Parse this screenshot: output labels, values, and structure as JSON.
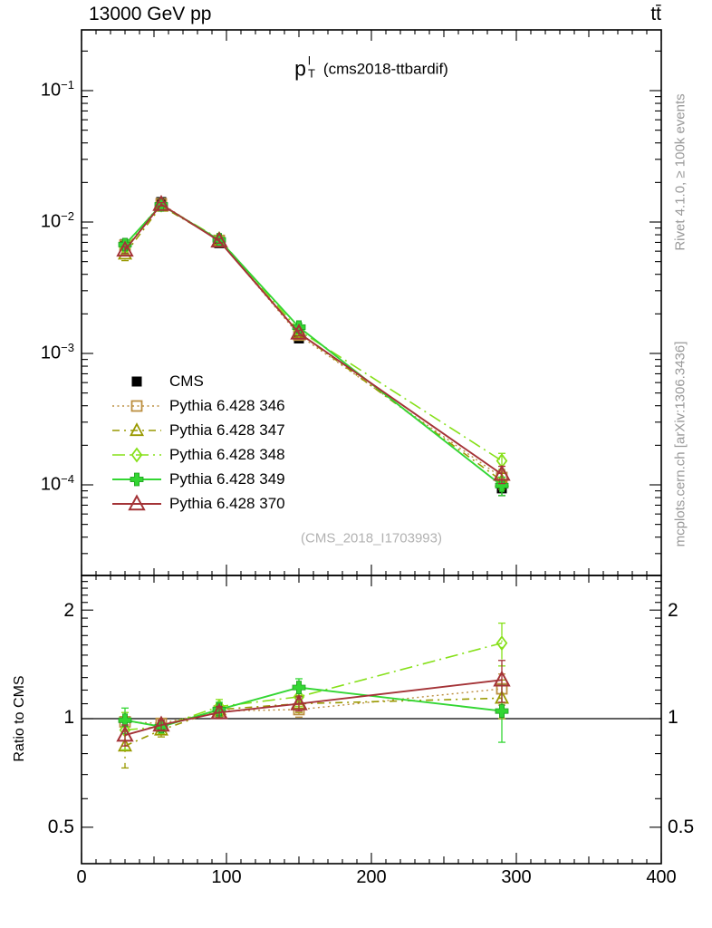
{
  "header": {
    "beam": "13000 GeV pp",
    "process": "tt̄"
  },
  "side_notes": {
    "rivet": "Rivet 4.1.0, ≥ 100k events",
    "mcplots": "mcplots.cern.ch [arXiv:1306.3436]"
  },
  "title": {
    "base": "p",
    "sup": "l",
    "sub": "T",
    "note": "(cms2018-ttbardif)"
  },
  "watermark": "(CMS_2018_I1703993)",
  "axes": {
    "ratio_ylabel": "Ratio to CMS",
    "main_yticks": [
      {
        "base": "10",
        "exp": "−1"
      },
      {
        "base": "10",
        "exp": "−2"
      },
      {
        "base": "10",
        "exp": "−3"
      },
      {
        "base": "10",
        "exp": "−4"
      }
    ],
    "ratio_yticks": [
      "2",
      "1",
      "0.5"
    ],
    "xticks": [
      "0",
      "100",
      "200",
      "300",
      "400"
    ]
  },
  "chart_data": {
    "type": "line",
    "title": "pT(lepton)  (cms2018-ttbardif)",
    "xlabel": "",
    "ylabel": "",
    "ratio_label": "Ratio to CMS",
    "x_range": [
      0,
      400
    ],
    "main_y_scale": "log",
    "main_y_range": [
      2.05e-05,
      0.29
    ],
    "ratio_y_scale": "log",
    "ratio_y_range": [
      0.4,
      2.5
    ],
    "grid": false,
    "legend_position": "middle-left",
    "x": [
      30,
      55,
      95,
      150,
      290
    ],
    "series": [
      {
        "name": "CMS",
        "color": "#000000",
        "marker": "square-filled",
        "line": "none",
        "lw": 1.5,
        "y": [
          0.0068,
          0.0142,
          0.0069,
          0.0013,
          9.4e-05
        ],
        "yerr_rel": [
          0.04,
          0.02,
          0.03,
          0.05,
          0.12
        ],
        "ratio": null,
        "ratio_err": null
      },
      {
        "name": "Pythia 6.428 346",
        "color": "#bc8f40",
        "marker": "square-open",
        "line": "dotted",
        "lw": 1.4,
        "y": [
          0.006664,
          0.013774,
          0.007245,
          0.001378,
          0.0001137
        ],
        "yerr_rel": [
          0.06,
          0.03,
          0.04,
          0.05,
          0.12
        ],
        "ratio": [
          0.98,
          0.97,
          1.05,
          1.06,
          1.21
        ],
        "ratio_err": [
          0.06,
          0.03,
          0.04,
          0.05,
          0.12
        ]
      },
      {
        "name": "Pythia 6.428 347",
        "color": "#999900",
        "marker": "triangle-open",
        "line": "dashdot",
        "lw": 1.6,
        "y": [
          0.005712,
          0.013206,
          0.007314,
          0.00143,
          0.0001072
        ],
        "yerr_rel": [
          0.11,
          0.04,
          0.04,
          0.06,
          0.14
        ],
        "ratio": [
          0.84,
          0.93,
          1.06,
          1.1,
          1.14
        ],
        "ratio_err": [
          0.11,
          0.04,
          0.04,
          0.06,
          0.14
        ]
      },
      {
        "name": "Pythia 6.428 348",
        "color": "#86e019",
        "marker": "diamond-open",
        "line": "longdashdot",
        "lw": 1.6,
        "y": [
          0.006324,
          0.01349,
          0.007452,
          0.001495,
          0.0001523
        ],
        "yerr_rel": [
          0.11,
          0.04,
          0.05,
          0.07,
          0.14
        ],
        "ratio": [
          0.93,
          0.95,
          1.08,
          1.15,
          1.62
        ],
        "ratio_err": [
          0.11,
          0.04,
          0.05,
          0.07,
          0.22
        ]
      },
      {
        "name": "Pythia 6.428 349",
        "color": "#33d633",
        "marker": "cross-filled",
        "line": "solid",
        "lw": 1.9,
        "y": [
          0.006732,
          0.01349,
          0.007314,
          0.001586,
          9.87e-05
        ],
        "yerr_rel": [
          0.08,
          0.03,
          0.05,
          0.07,
          0.16
        ],
        "ratio": [
          0.99,
          0.95,
          1.06,
          1.22,
          1.05
        ],
        "ratio_err": [
          0.08,
          0.03,
          0.05,
          0.07,
          0.19
        ]
      },
      {
        "name": "Pythia 6.428 370",
        "color": "#a43337",
        "marker": "triangle-open-big",
        "line": "solid",
        "lw": 1.9,
        "y": [
          0.00612,
          0.013632,
          0.007176,
          0.00143,
          0.0001203
        ],
        "yerr_rel": [
          0.06,
          0.03,
          0.04,
          0.05,
          0.15
        ],
        "ratio": [
          0.9,
          0.96,
          1.04,
          1.1,
          1.28
        ],
        "ratio_err": [
          0.06,
          0.03,
          0.04,
          0.05,
          0.17
        ]
      }
    ]
  }
}
